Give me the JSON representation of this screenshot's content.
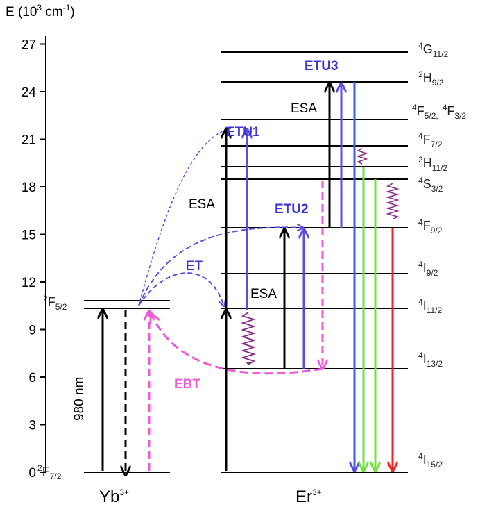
{
  "axis": {
    "title": "E (10",
    "title_sup": "3",
    "title_unit": " cm",
    "title_unit_sup": "-1",
    "title_end": ")",
    "ticks": [
      "0",
      "3",
      "6",
      "9",
      "12",
      "15",
      "18",
      "21",
      "24",
      "27"
    ]
  },
  "ions": {
    "yb": {
      "name": "Yb",
      "charge": "3+"
    },
    "er": {
      "name": "Er",
      "charge": "3+"
    }
  },
  "yb_levels": {
    "ground": {
      "pre": "2",
      "main": "F",
      "sub": "7/2"
    },
    "excited": {
      "pre": "2",
      "main": "F",
      "sub": "5/2"
    }
  },
  "er_levels": [
    {
      "pre": "4",
      "main": "I",
      "sub": "15/2"
    },
    {
      "pre": "4",
      "main": "I",
      "sub": "13/2"
    },
    {
      "pre": "4",
      "main": "I",
      "sub": "11/2"
    },
    {
      "pre": "4",
      "main": "I",
      "sub": "9/2"
    },
    {
      "pre": "4",
      "main": "F",
      "sub": "9/2"
    },
    {
      "pre": "4",
      "main": "S",
      "sub": "3/2"
    },
    {
      "pre": "2",
      "main": "H",
      "sub": "11/2"
    },
    {
      "pre": "4",
      "main": "F",
      "sub": "7/2"
    },
    {
      "pre": "4",
      "main": "F",
      "sub": "5/2,",
      "pre2": "4",
      "main2": "F",
      "sub2": "3/2"
    },
    {
      "pre": "2",
      "main": "H",
      "sub": "9/2"
    },
    {
      "pre": "4",
      "main": "G",
      "sub": "11/2"
    }
  ],
  "labels": {
    "pump": "980 nm",
    "et": "ET",
    "ebt": "EBT",
    "etu1": "ETU1",
    "etu2": "ETU2",
    "etu3": "ETU3",
    "esa_1": "ESA",
    "esa_2": "ESA",
    "esa_3": "ESA"
  },
  "colors": {
    "black": "#000000",
    "blue_purple": "#5a4de6",
    "magenta": "#ee5bd8",
    "green": "#6fe33a",
    "red": "#f22222",
    "blue": "#3a5ce6",
    "wavy": "#8a2f86"
  }
}
